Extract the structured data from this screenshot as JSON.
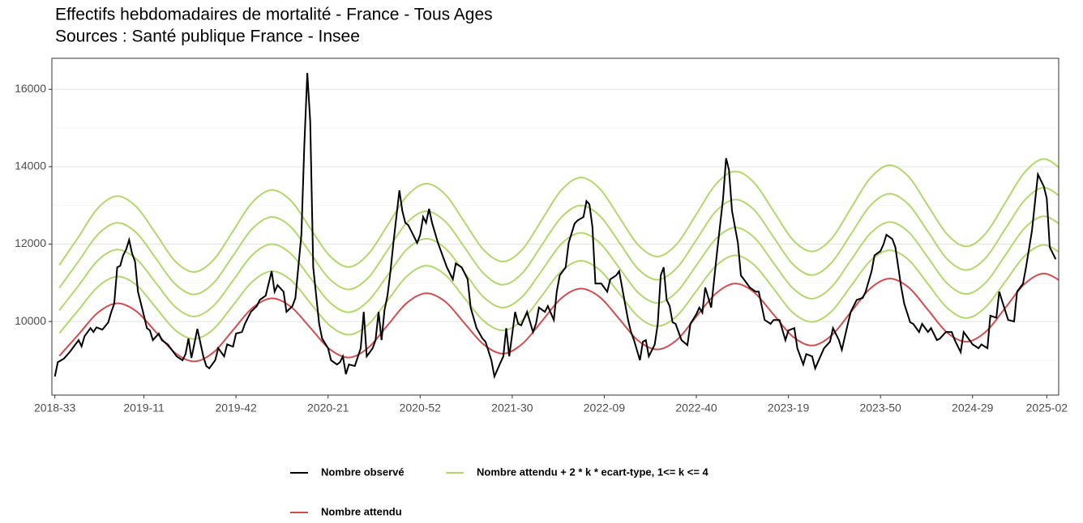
{
  "chart_data": {
    "type": "line",
    "title": "Effectifs hebdomadaires de mortalité - France - Tous Ages",
    "subtitle": "Sources : Santé publique France - Insee",
    "xlim": [
      -1,
      338
    ],
    "xticks": [
      {
        "value": 0,
        "label": "2018-33"
      },
      {
        "value": 30,
        "label": "2019-11"
      },
      {
        "value": 61,
        "label": "2019-42"
      },
      {
        "value": 92,
        "label": "2020-21"
      },
      {
        "value": 123,
        "label": "2020-52"
      },
      {
        "value": 154,
        "label": "2021-30"
      },
      {
        "value": 185,
        "label": "2022-09"
      },
      {
        "value": 216,
        "label": "2022-40"
      },
      {
        "value": 247,
        "label": "2023-19"
      },
      {
        "value": 278,
        "label": "2023-50"
      },
      {
        "value": 309,
        "label": "2024-29"
      },
      {
        "value": 334,
        "label": "2025-02"
      }
    ],
    "ylim": [
      8100,
      16800
    ],
    "yticks": [
      10000,
      12000,
      14000,
      16000
    ],
    "y_minor_ticks": [
      9000,
      11000,
      13000,
      15000
    ],
    "grid": true,
    "legend": "bottom",
    "x": [
      1.5,
      8,
      14.5,
      21,
      27.5,
      34,
      40.5,
      47,
      53.5,
      60,
      66.5,
      73,
      79.5,
      86,
      92.5,
      99,
      105.5,
      112,
      118.5,
      125,
      131.5,
      138,
      144.5,
      151,
      157.5,
      164,
      170.5,
      177,
      183.5,
      190,
      196.5,
      203,
      209.5,
      216,
      222.5,
      229,
      235.5,
      242,
      248.5,
      255,
      261.5,
      268,
      274.5,
      281,
      287.5,
      294,
      300.5,
      307,
      313.5,
      320,
      326.5,
      333,
      339.5
    ],
    "series": [
      {
        "name": "Nombre observé",
        "color": "#000000",
        "x": [
          0,
          1,
          3,
          5,
          8,
          9,
          10,
          12,
          13,
          14,
          16,
          18,
          19,
          20,
          21,
          22,
          23,
          24,
          25,
          26,
          27,
          28,
          30,
          31,
          32,
          33,
          35,
          36,
          38,
          39,
          41,
          43,
          44,
          45,
          46,
          48,
          50,
          51,
          52,
          54,
          55,
          57,
          58,
          60,
          61,
          63,
          64,
          66,
          68,
          69,
          71,
          73,
          74,
          75,
          77,
          78,
          80,
          81,
          83,
          84,
          85,
          86,
          87,
          89,
          90,
          92,
          93,
          95,
          96,
          97,
          98,
          99,
          101,
          103,
          104,
          105,
          107,
          108,
          109,
          110,
          111,
          112,
          113,
          114,
          116,
          117,
          118,
          119,
          120,
          122,
          123,
          124,
          125,
          126,
          127,
          129,
          131,
          132,
          134,
          135,
          137,
          139,
          140,
          142,
          144,
          145,
          147,
          148,
          150,
          151,
          152,
          153,
          155,
          156,
          157,
          159,
          161,
          162,
          163,
          165,
          166,
          168,
          169,
          170,
          172,
          173,
          175,
          176,
          178,
          179,
          180,
          181,
          182,
          184,
          186,
          187,
          189,
          190,
          192,
          193,
          194,
          195,
          197,
          198,
          199,
          200,
          202,
          203,
          204,
          205,
          206,
          207,
          208,
          209,
          211,
          213,
          214,
          216,
          217,
          218,
          219,
          221,
          222,
          223,
          225,
          226,
          227,
          228,
          230,
          231,
          232,
          234,
          236,
          237,
          239,
          241,
          242,
          244,
          246,
          247,
          249,
          250,
          252,
          253,
          255,
          256,
          258,
          259,
          261,
          262,
          264,
          265,
          267,
          268,
          270,
          272,
          273,
          275,
          276,
          278,
          279,
          280,
          282,
          283,
          285,
          286,
          288,
          289,
          291,
          292,
          294,
          295,
          297,
          298,
          300,
          302,
          303,
          305,
          306,
          308,
          309,
          311,
          312,
          314,
          315,
          317,
          318,
          319,
          321,
          323,
          324,
          326,
          327,
          329,
          330,
          331,
          333,
          334,
          335,
          337
        ],
        "values": [
          8580,
          8950,
          9040,
          9210,
          9520,
          9360,
          9620,
          9830,
          9730,
          9850,
          9790,
          9980,
          10250,
          10460,
          11400,
          11440,
          11710,
          11860,
          12110,
          11760,
          11550,
          10770,
          10150,
          9830,
          9770,
          9520,
          9690,
          9520,
          9410,
          9310,
          9100,
          9000,
          9160,
          9560,
          9060,
          9810,
          9100,
          8850,
          8790,
          9000,
          9310,
          9100,
          9410,
          9350,
          9690,
          9730,
          9940,
          10250,
          10400,
          10560,
          10670,
          11300,
          10770,
          10940,
          10770,
          10250,
          10400,
          10610,
          12240,
          14540,
          16420,
          15160,
          11400,
          9940,
          9560,
          9310,
          9000,
          8890,
          8950,
          9100,
          8640,
          8890,
          8850,
          9310,
          10250,
          9100,
          9310,
          9520,
          10250,
          9520,
          10290,
          10670,
          11300,
          12030,
          13390,
          12860,
          12550,
          12490,
          12340,
          12030,
          12240,
          12700,
          12550,
          12910,
          12550,
          12030,
          11610,
          11400,
          11090,
          11500,
          11400,
          11090,
          10360,
          9830,
          9560,
          9480,
          9000,
          8580,
          8930,
          9100,
          9830,
          9100,
          10250,
          9940,
          9900,
          10250,
          9730,
          9940,
          10360,
          10250,
          10400,
          10040,
          10770,
          11190,
          11400,
          12030,
          12530,
          12610,
          12700,
          13110,
          13030,
          12450,
          10980,
          10980,
          10770,
          11090,
          11190,
          11300,
          10460,
          10040,
          9730,
          9520,
          9000,
          9480,
          9520,
          9100,
          9410,
          9940,
          11190,
          11400,
          10560,
          10400,
          9980,
          9940,
          9520,
          9390,
          9940,
          10190,
          10360,
          10230,
          10880,
          10360,
          11090,
          11820,
          13180,
          14220,
          13910,
          12860,
          12030,
          11190,
          11090,
          10880,
          10770,
          10770,
          10040,
          9940,
          10040,
          10040,
          9520,
          9770,
          9830,
          9310,
          8890,
          9160,
          9100,
          8790,
          9140,
          9310,
          9480,
          9830,
          9520,
          9270,
          9940,
          10250,
          10560,
          10610,
          10770,
          11300,
          11710,
          11820,
          11990,
          12240,
          12130,
          11920,
          10880,
          10460,
          9980,
          9940,
          9730,
          9940,
          9730,
          9830,
          9520,
          9560,
          9730,
          9730,
          9520,
          9210,
          9730,
          9520,
          9410,
          9310,
          9410,
          9310,
          10150,
          10100,
          10770,
          10520,
          10040,
          10000,
          10770,
          10980,
          11400,
          12340,
          13070,
          13800,
          13490,
          13180,
          11920,
          11610
        ]
      },
      {
        "name": "Nombre attendu + 2 * k * ecart-type, 1<= k <= 4",
        "color": "#b3d76c",
        "lines": [
          [
            9700,
            10300,
            10900,
            11160,
            10940,
            10360,
            9780,
            9550,
            9810,
            10420,
            11030,
            11300,
            11070,
            10480,
            9900,
            9660,
            9920,
            10540,
            11170,
            11440,
            11200,
            10600,
            10010,
            9770,
            10040,
            10670,
            11300,
            11570,
            11330,
            10730,
            10120,
            9880,
            10150,
            10790,
            11430,
            11710,
            11460,
            10850,
            10230,
            9990,
            10260,
            10910,
            11560,
            11840,
            11590,
            10970,
            10350,
            10090,
            10380,
            11030,
            11690,
            11980,
            11720
          ],
          [
            10290,
            10930,
            11580,
            11860,
            11610,
            11000,
            10380,
            10130,
            10410,
            11060,
            11720,
            12000,
            11750,
            11130,
            10500,
            10240,
            10530,
            11190,
            11860,
            12140,
            11890,
            11260,
            10620,
            10360,
            10650,
            11320,
            12000,
            12290,
            12030,
            11390,
            10740,
            10480,
            10770,
            11450,
            12130,
            12430,
            12170,
            11510,
            10860,
            10590,
            10890,
            11580,
            12270,
            12570,
            12310,
            11650,
            10980,
            10710,
            11010,
            11710,
            12410,
            12720,
            12450
          ],
          [
            10870,
            11560,
            12250,
            12550,
            12290,
            11630,
            10970,
            10700,
            11000,
            11700,
            12400,
            12700,
            12440,
            11770,
            11100,
            10830,
            11130,
            11840,
            12550,
            12850,
            12580,
            11910,
            11230,
            10950,
            11260,
            11980,
            12690,
            13000,
            12730,
            12050,
            11350,
            11080,
            11390,
            12110,
            12840,
            13150,
            12880,
            12180,
            11480,
            11200,
            11520,
            12250,
            12990,
            13300,
            13020,
            12320,
            11610,
            11330,
            11650,
            12390,
            13130,
            13460,
            13170
          ],
          [
            11460,
            12190,
            12930,
            13240,
            12960,
            12270,
            11560,
            11280,
            11600,
            12340,
            13080,
            13400,
            13120,
            12410,
            11700,
            11410,
            11740,
            12480,
            13240,
            13560,
            13280,
            12560,
            11840,
            11550,
            11870,
            12630,
            13390,
            13720,
            13430,
            12700,
            11970,
            11680,
            12010,
            12770,
            13540,
            13880,
            13580,
            12850,
            12110,
            11810,
            12140,
            12920,
            13700,
            14040,
            13740,
            12990,
            12250,
            11940,
            12280,
            13070,
            13850,
            14200,
            13890
          ]
        ]
      },
      {
        "name": "Nombre attendu",
        "color": "#d24d4f",
        "values": [
          9110,
          9670,
          10230,
          10470,
          10260,
          9730,
          9190,
          8970,
          9210,
          9780,
          10350,
          10600,
          10380,
          9840,
          9290,
          9070,
          9320,
          9900,
          10480,
          10730,
          10510,
          9950,
          9400,
          9170,
          9430,
          10010,
          10600,
          10850,
          10630,
          10070,
          9500,
          9280,
          9530,
          10130,
          10720,
          10980,
          10750,
          10180,
          9610,
          9380,
          9640,
          10240,
          10850,
          11110,
          10880,
          10300,
          9710,
          9480,
          9740,
          10350,
          10970,
          11240,
          11000
        ]
      }
    ]
  }
}
